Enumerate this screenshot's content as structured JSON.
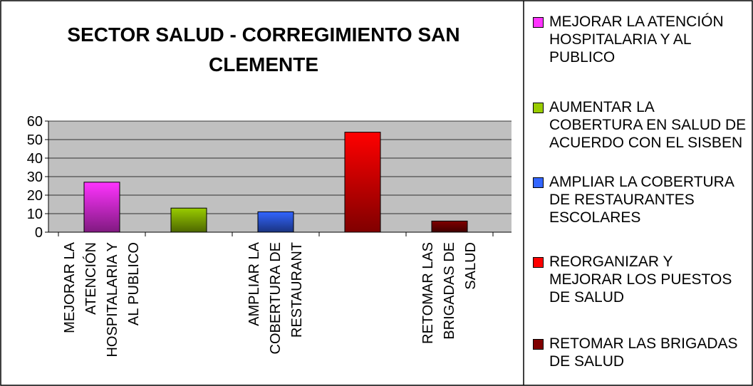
{
  "chart_data": {
    "type": "bar",
    "title": "SECTOR SALUD - CORREGIMIENTO SAN CLEMENTE",
    "categories": [
      "MEJORAR LA ATENCIÓN HOSPITALARIA Y AL PUBLICO",
      null,
      "AMPLIAR LA COBERTURA DE RESTAURANT",
      null,
      "RETOMAR LAS BRIGADAS DE SALUD"
    ],
    "values": [
      27,
      13,
      11,
      54,
      6
    ],
    "colors": [
      "#ff33ff",
      "#99cc00",
      "#3366ff",
      "#ff0000",
      "#800000"
    ],
    "legend": [
      "MEJORAR LA ATENCIÓN HOSPITALARIA Y AL PUBLICO",
      "AUMENTAR  LA COBERTURA EN SALUD DE ACUERDO CON EL SISBEN",
      "AMPLIAR LA COBERTURA DE RESTAURANTES ESCOLARES",
      "REORGANIZAR Y MEJORAR LOS PUESTOS DE SALUD",
      "RETOMAR LAS BRIGADAS DE SALUD"
    ],
    "ylim": [
      0,
      60
    ],
    "yticks": [
      0,
      10,
      20,
      30,
      40,
      50,
      60
    ],
    "grid": true
  }
}
